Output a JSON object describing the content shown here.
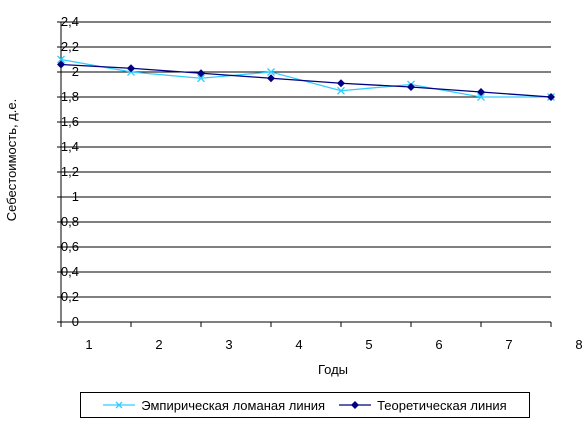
{
  "chart_data": {
    "type": "line",
    "xlabel": "Годы",
    "ylabel": "Себестоимость, д.е.",
    "xlim": [
      1,
      8
    ],
    "ylim": [
      0,
      2.4
    ],
    "x_ticks": [
      "1",
      "2",
      "3",
      "4",
      "5",
      "6",
      "7",
      "8"
    ],
    "y_ticks": [
      "0",
      "0,2",
      "0,4",
      "0,6",
      "0,8",
      "1",
      "1,2",
      "1,4",
      "1,6",
      "1,8",
      "2",
      "2,2",
      "2,4"
    ],
    "grid": true,
    "legend_position": "bottom",
    "series": [
      {
        "name": "Эмпирическая ломаная линия",
        "color": "#33CCFF",
        "marker": "x",
        "x": [
          1,
          2,
          3,
          4,
          5,
          6,
          7,
          8
        ],
        "y": [
          2.1,
          2.0,
          1.95,
          2.0,
          1.85,
          1.9,
          1.8,
          1.8
        ]
      },
      {
        "name": "Теоретическая линия",
        "color": "#000080",
        "marker": "diamond",
        "x": [
          1,
          2,
          3,
          4,
          5,
          6,
          7,
          8
        ],
        "y": [
          2.06,
          2.03,
          1.99,
          1.95,
          1.91,
          1.88,
          1.84,
          1.8
        ]
      }
    ]
  }
}
